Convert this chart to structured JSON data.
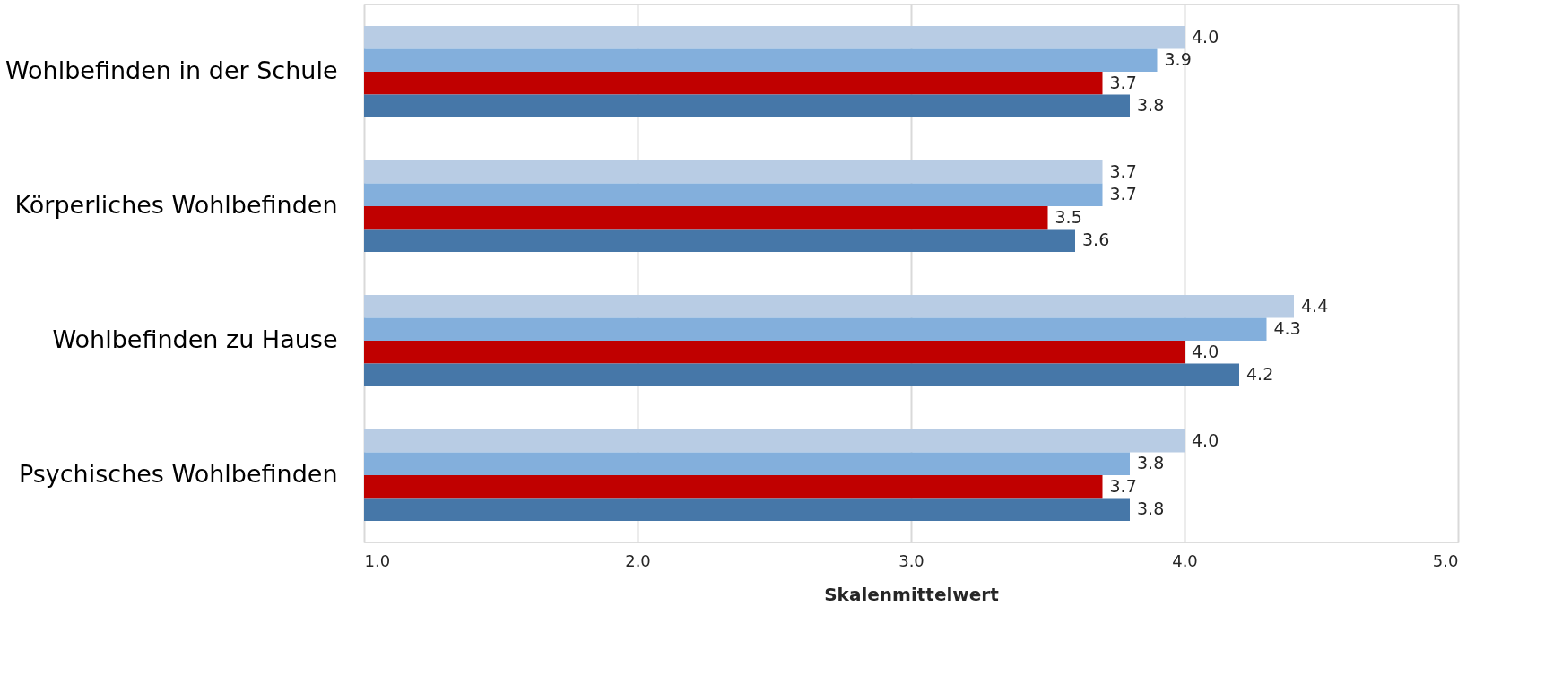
{
  "chart_data": {
    "type": "bar",
    "orientation": "horizontal",
    "xlabel": "Skalenmittelwert",
    "categories": [
      "Wohlbefinden in der Schule",
      "Körperliches Wohlbefinden",
      "Wohlbefinden zu Hause",
      "Psychisches Wohlbefinden"
    ],
    "series": [
      {
        "color": "#b8cce4",
        "values": [
          4.0,
          3.7,
          4.4,
          4.0
        ],
        "value_labels": [
          "4.0",
          "3.7",
          "4.4",
          "4.0"
        ]
      },
      {
        "color": "#83afdc",
        "values": [
          3.9,
          3.7,
          4.3,
          3.8
        ],
        "value_labels": [
          "3.9",
          "3.7",
          "4.3",
          "3.8"
        ]
      },
      {
        "color": "#c00000",
        "values": [
          3.7,
          3.5,
          4.0,
          3.7
        ],
        "value_labels": [
          "3.7",
          "3.5",
          "4.0",
          "3.7"
        ]
      },
      {
        "color": "#4677a8",
        "values": [
          3.8,
          3.6,
          4.2,
          3.8
        ],
        "value_labels": [
          "3.8",
          "3.6",
          "4.2",
          "3.8"
        ]
      }
    ],
    "xlim": [
      1,
      5
    ],
    "xticks": [
      {
        "value": 1,
        "label": "1.0"
      },
      {
        "value": 2,
        "label": "2.0"
      },
      {
        "value": 3,
        "label": "3.0"
      },
      {
        "value": 4,
        "label": "4.0"
      },
      {
        "value": 5,
        "label": "5.0"
      }
    ],
    "grid": "x"
  }
}
